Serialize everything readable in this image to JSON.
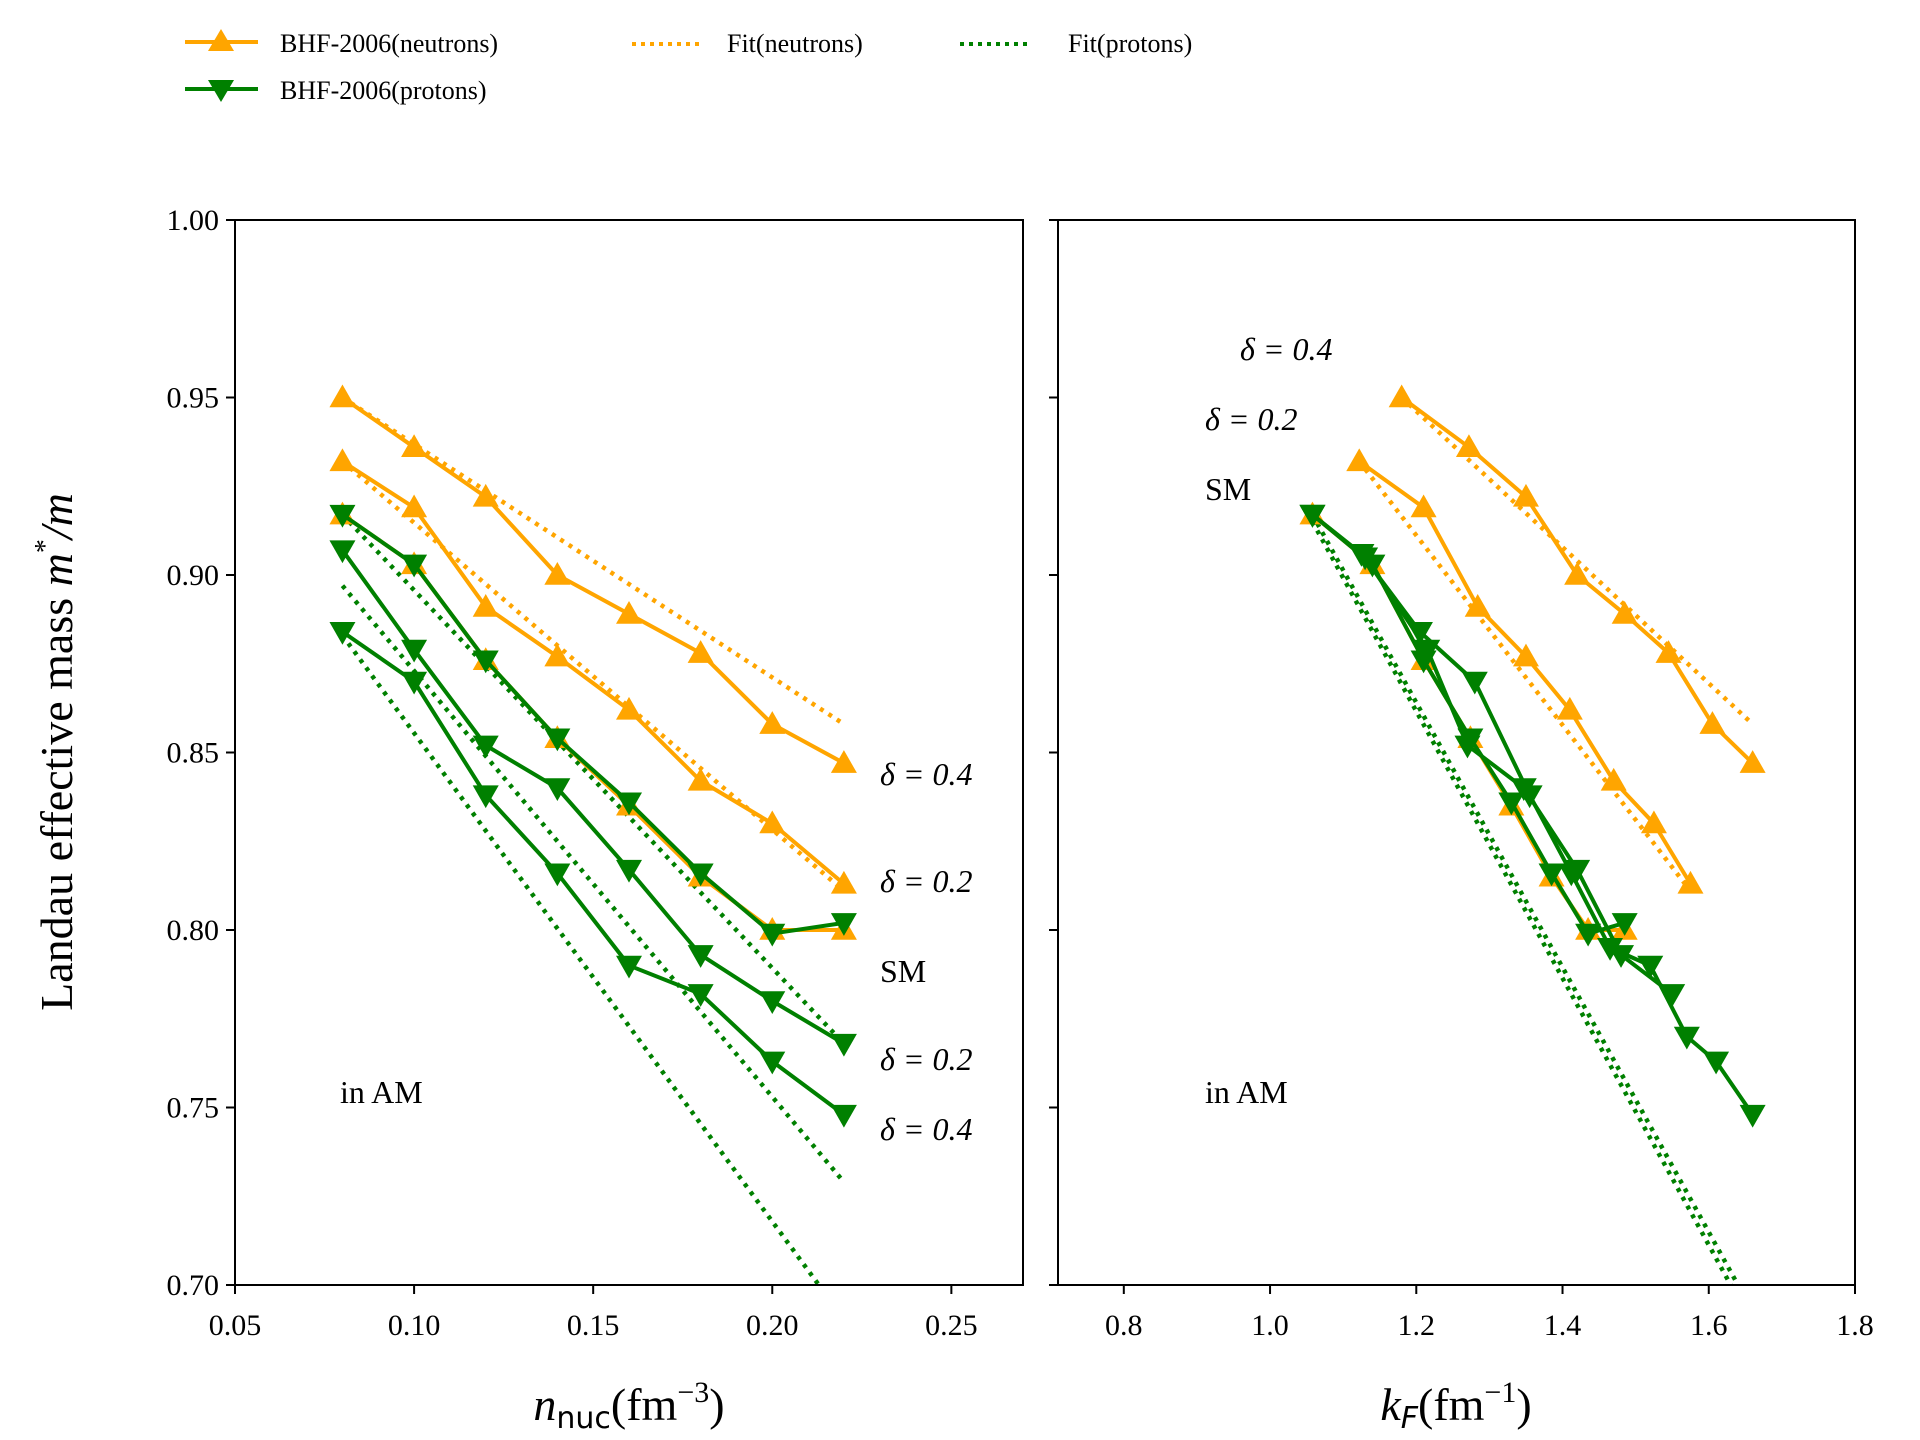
{
  "colors": {
    "neutron": "#FFA500",
    "proton": "#008000",
    "axis": "#000000"
  },
  "legend": {
    "placement": "top-left, outside",
    "entries": [
      {
        "label": "BHF-2006(neutrons)",
        "color": "#FFA500",
        "style": "solid",
        "marker": "triangle-up"
      },
      {
        "label": "BHF-2006(protons)",
        "color": "#008000",
        "style": "solid",
        "marker": "triangle-down"
      },
      {
        "label": "Fit(neutrons)",
        "color": "#FFA500",
        "style": "dotted",
        "marker": "none"
      },
      {
        "label": "Fit(protons)",
        "color": "#008000",
        "style": "dotted",
        "marker": "none"
      }
    ]
  },
  "panels": {
    "left": {
      "ylabel_main": "Landau effective mass",
      "ylabel_sym": "m",
      "ylabel_sup": "*",
      "ylabel_tail": "/m",
      "xlabel_sym": "n",
      "xlabel_sub": "nuc",
      "xlabel_unit": "(fm",
      "xlabel_sup": "−3",
      "xlabel_close": ")",
      "note": "in AM",
      "delta_labels": [
        "δ = 0.4",
        "δ = 0.2",
        "SM",
        "δ = 0.2",
        "δ = 0.4"
      ]
    },
    "right": {
      "xlabel_sym": "k",
      "xlabel_sub": "F",
      "xlabel_unit": "(fm",
      "xlabel_sup": "−1",
      "xlabel_close": ")",
      "note": "in AM",
      "delta_labels": [
        "δ = 0.4",
        "δ = 0.2",
        "SM"
      ]
    }
  },
  "chart_data": [
    {
      "type": "line",
      "xlim": [
        0.05,
        0.27
      ],
      "ylim": [
        0.7,
        1.0
      ],
      "xticks": [
        "0.05",
        "0.10",
        "0.15",
        "0.20",
        "0.25"
      ],
      "yticks": [
        "0.70",
        "0.75",
        "0.80",
        "0.85",
        "0.90",
        "0.95",
        "1.00"
      ],
      "grid": false,
      "x": [
        0.08,
        0.1,
        0.12,
        0.14,
        0.16,
        0.18,
        0.2,
        0.22
      ],
      "series": [
        {
          "name": "BHF-2006(neutrons)",
          "delta": "δ = 0.4",
          "values": [
            0.95,
            0.936,
            0.922,
            0.9,
            0.889,
            0.878,
            0.858,
            0.847
          ]
        },
        {
          "name": "BHF-2006(neutrons)",
          "delta": "δ = 0.2",
          "values": [
            0.932,
            0.919,
            0.891,
            0.877,
            0.862,
            0.842,
            0.83,
            0.813
          ]
        },
        {
          "name": "BHF-2006(neutrons)",
          "delta": "SM",
          "values": [
            0.917,
            0.903,
            0.876,
            0.854,
            0.835,
            0.815,
            0.8,
            0.8
          ]
        },
        {
          "name": "BHF-2006(protons)",
          "delta": "SM",
          "values": [
            0.917,
            0.903,
            0.876,
            0.854,
            0.836,
            0.816,
            0.799,
            0.802
          ]
        },
        {
          "name": "BHF-2006(protons)",
          "delta": "δ = 0.2",
          "values": [
            0.907,
            0.879,
            0.852,
            0.84,
            0.817,
            0.793,
            0.78,
            0.768
          ]
        },
        {
          "name": "BHF-2006(protons)",
          "delta": "δ = 0.4",
          "values": [
            0.884,
            0.87,
            0.838,
            0.816,
            0.79,
            0.782,
            0.763,
            0.748
          ]
        },
        {
          "name": "Fit(neutrons)",
          "delta": "δ = 0.4",
          "x": [
            0.08,
            0.22
          ],
          "values": [
            0.95,
            0.858
          ]
        },
        {
          "name": "Fit(neutrons)",
          "delta": "δ = 0.2",
          "x": [
            0.08,
            0.22
          ],
          "values": [
            0.932,
            0.811
          ]
        },
        {
          "name": "Fit(protons)",
          "delta": "SM",
          "x": [
            0.08,
            0.22
          ],
          "values": [
            0.917,
            0.768
          ]
        },
        {
          "name": "Fit(protons)",
          "delta": "δ = 0.2",
          "x": [
            0.08,
            0.22
          ],
          "values": [
            0.897,
            0.729
          ]
        },
        {
          "name": "Fit(protons)",
          "delta": "δ = 0.4",
          "x": [
            0.08,
            0.213
          ],
          "values": [
            0.883,
            0.7
          ]
        }
      ]
    },
    {
      "type": "line",
      "xlim": [
        0.71,
        1.8
      ],
      "ylim": [
        0.7,
        1.0
      ],
      "xticks": [
        "0.8",
        "1.0",
        "1.2",
        "1.4",
        "1.6",
        "1.8"
      ],
      "yticks": [],
      "grid": false,
      "series": [
        {
          "name": "BHF-2006(neutrons)",
          "delta": "δ = 0.4",
          "x": [
            1.18,
            1.272,
            1.35,
            1.42,
            1.485,
            1.545,
            1.605,
            1.66
          ],
          "values": [
            0.95,
            0.936,
            0.922,
            0.9,
            0.889,
            0.878,
            0.858,
            0.847
          ]
        },
        {
          "name": "BHF-2006(neutrons)",
          "delta": "δ = 0.2",
          "x": [
            1.122,
            1.21,
            1.284,
            1.35,
            1.41,
            1.47,
            1.525,
            1.575
          ],
          "values": [
            0.932,
            0.919,
            0.891,
            0.877,
            0.862,
            0.842,
            0.83,
            0.813
          ]
        },
        {
          "name": "BHF-2006(neutrons)",
          "delta": "SM",
          "x": [
            1.058,
            1.14,
            1.21,
            1.274,
            1.33,
            1.385,
            1.435,
            1.485
          ],
          "values": [
            0.917,
            0.903,
            0.876,
            0.854,
            0.835,
            0.815,
            0.8,
            0.8
          ]
        },
        {
          "name": "BHF-2006(protons)",
          "delta": "SM",
          "x": [
            1.058,
            1.14,
            1.21,
            1.274,
            1.33,
            1.385,
            1.435,
            1.485
          ],
          "values": [
            0.917,
            0.903,
            0.876,
            0.854,
            0.836,
            0.816,
            0.799,
            0.802
          ]
        },
        {
          "name": "BHF-2006(protons)",
          "delta": "δ = 0.2",
          "x": [
            1.058,
            1.13,
            1.215,
            1.27,
            1.347,
            1.42,
            1.48,
            1.55
          ],
          "values": [
            0.917,
            0.905,
            0.879,
            0.852,
            0.84,
            0.817,
            0.793,
            0.782
          ]
        },
        {
          "name": "BHF-2006(protons)",
          "delta": "δ = 0.4",
          "x": [
            1.058,
            1.125,
            1.205,
            1.28,
            1.355,
            1.412,
            1.465,
            1.52,
            1.57,
            1.61,
            1.66
          ],
          "values": [
            0.917,
            0.906,
            0.884,
            0.87,
            0.838,
            0.816,
            0.795,
            0.79,
            0.77,
            0.763,
            0.748
          ]
        },
        {
          "name": "Fit(neutrons)",
          "delta": "δ = 0.4",
          "x": [
            1.18,
            1.66
          ],
          "values": [
            0.95,
            0.858
          ]
        },
        {
          "name": "Fit(neutrons)",
          "delta": "δ = 0.2",
          "x": [
            1.122,
            1.575
          ],
          "values": [
            0.932,
            0.811
          ]
        },
        {
          "name": "Fit(protons)",
          "delta": "SM",
          "x": [
            1.058,
            1.64
          ],
          "values": [
            0.917,
            0.7
          ]
        },
        {
          "name": "Fit(protons)",
          "delta": "δ = 0.2",
          "x": [
            1.058,
            1.63
          ],
          "values": [
            0.915,
            0.7
          ]
        }
      ]
    }
  ]
}
